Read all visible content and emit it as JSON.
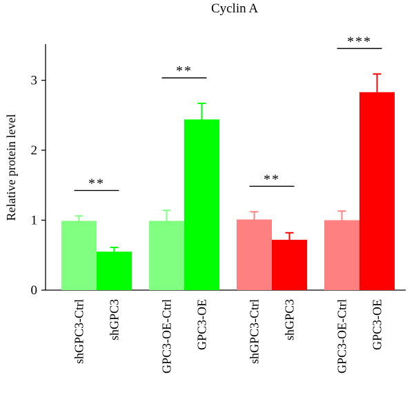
{
  "chart_data": {
    "type": "bar",
    "title": "Cyclin A",
    "ylabel": "Relative protein level",
    "xlabel": "",
    "ylim": [
      0,
      3.5
    ],
    "yticks": [
      0,
      1,
      2,
      3
    ],
    "grid": false,
    "legend": "none",
    "categories": [
      "shGPC3-Ctrl",
      "shGPC3",
      "GPC3-OE-Ctrl",
      "GPC3-OE",
      "shGPC3-Ctrl",
      "shGPC3",
      "GPC3-OE-Ctrl",
      "GPC3-OE"
    ],
    "values": [
      0.99,
      0.55,
      0.99,
      2.44,
      1.01,
      0.72,
      1.0,
      2.83
    ],
    "errors": [
      0.07,
      0.06,
      0.15,
      0.23,
      0.11,
      0.1,
      0.13,
      0.26
    ],
    "colors": [
      "#80ff80",
      "#00ff00",
      "#80ff80",
      "#00ff00",
      "#ff8080",
      "#ff0000",
      "#ff8080",
      "#ff0000"
    ],
    "annotations": [
      {
        "pair": [
          0,
          1
        ],
        "text": "**"
      },
      {
        "pair": [
          2,
          3
        ],
        "text": "**"
      },
      {
        "pair": [
          4,
          5
        ],
        "text": "**"
      },
      {
        "pair": [
          6,
          7
        ],
        "text": "***"
      }
    ]
  }
}
